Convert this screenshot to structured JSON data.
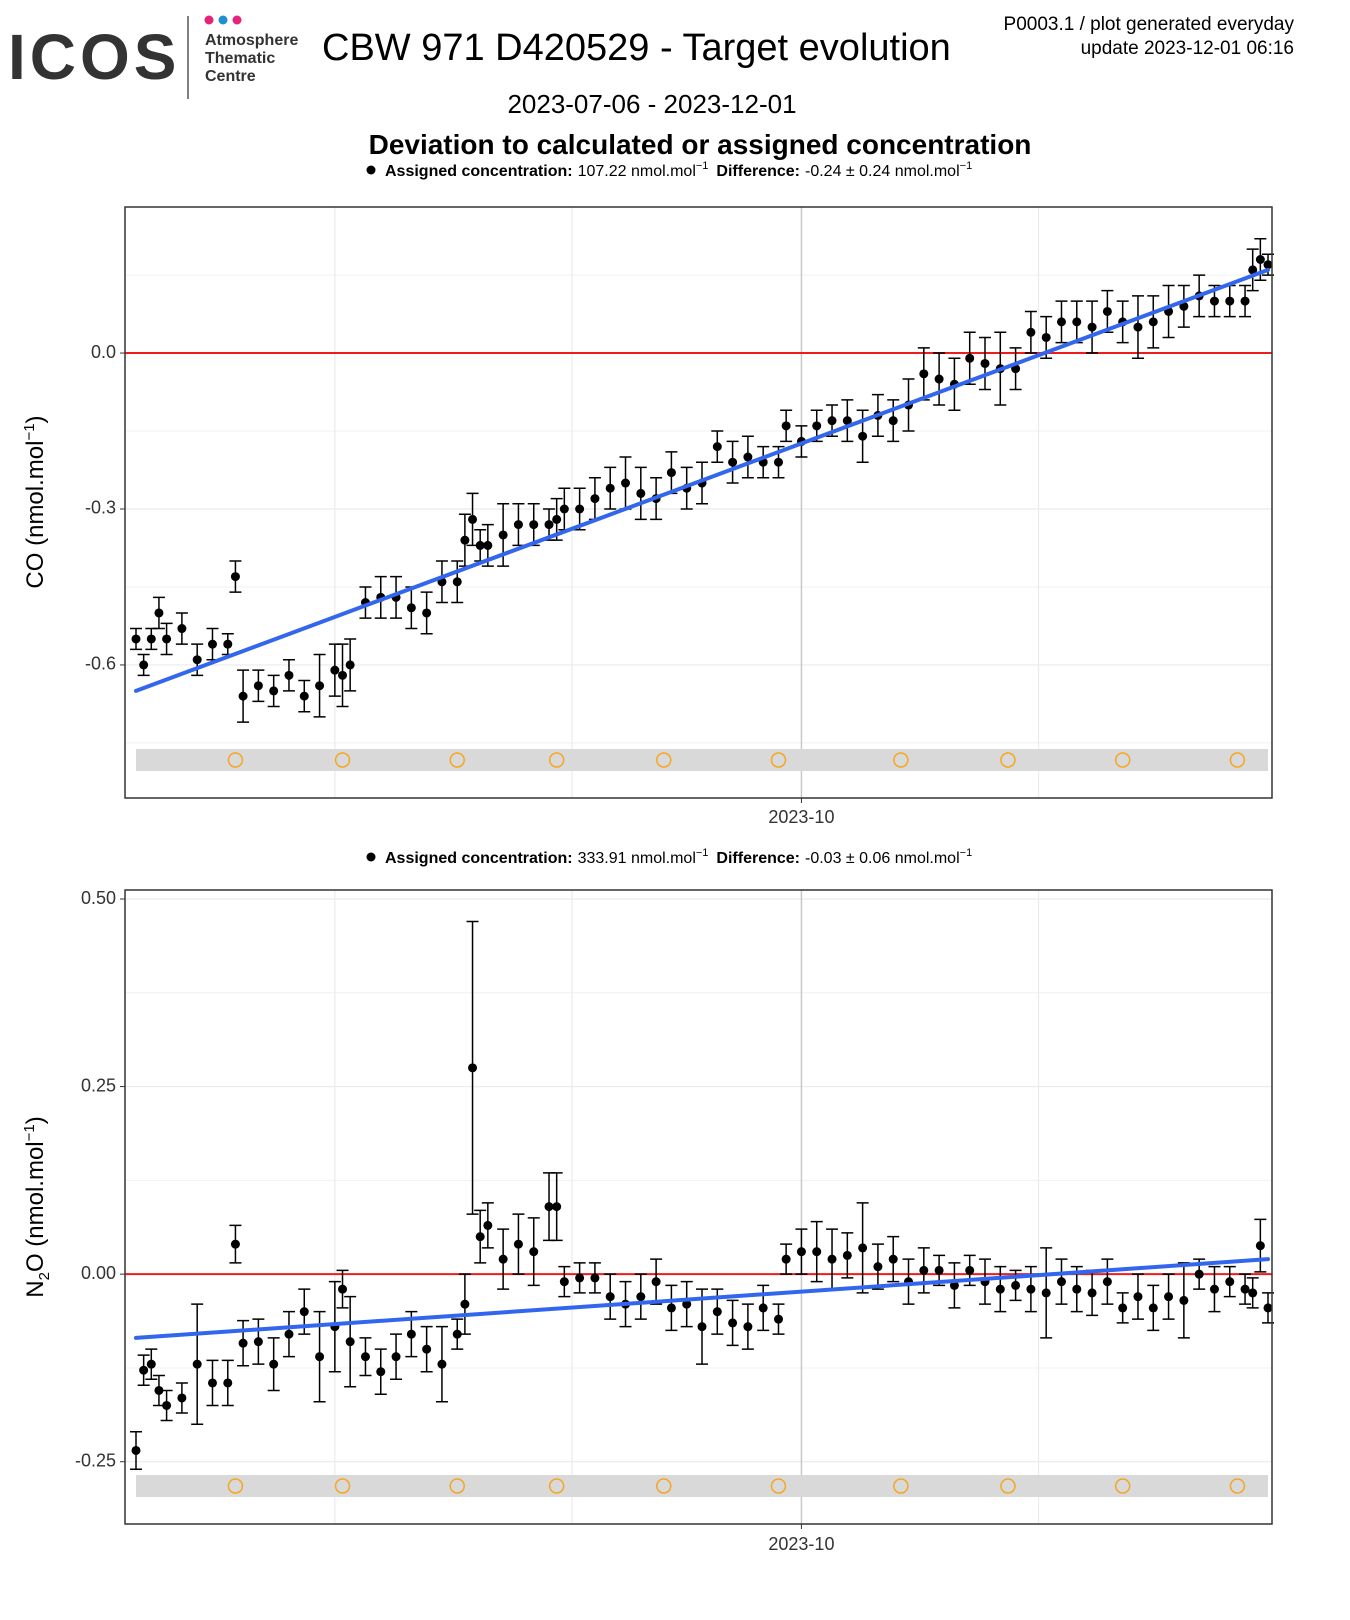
{
  "header": {
    "logo": "ICOS",
    "logo_lines": [
      "Atmosphere",
      "Thematic",
      "Centre"
    ],
    "title": "CBW 971 D420529 - Target evolution",
    "note": "P0003.1 / plot generated everyday",
    "update": "update  2023-12-01 06:16",
    "period": "2023-07-06 - 2023-12-01",
    "subtitle": "Deviation to calculated or assigned concentration"
  },
  "chart_data": [
    {
      "type": "scatter",
      "legend": {
        "assigned_label": "Assigned concentration:",
        "assigned": "107.22 nmol.mol",
        "assigned_exp": "−1",
        "difference_label": "Difference:",
        "difference": "-0.24 ± 0.24 nmol.mol",
        "difference_exp": "−1"
      },
      "ylabel": {
        "pre": "CO (nmol.mol",
        "sup": "−1",
        "post": ")"
      },
      "xlim": [
        "2023-07-06",
        "2023-12-01"
      ],
      "xticks": [
        {
          "value": "2023-10-01",
          "label": "2023-10"
        }
      ],
      "xgrid": [
        "2023-08-01",
        "2023-09-01",
        "2023-11-01"
      ],
      "ylim": [
        -0.856,
        0.281
      ],
      "yticks": [
        {
          "value": 0,
          "label": "0.0"
        },
        -0.3,
        -0.6
      ],
      "grid": true,
      "reference_line": {
        "value": 0,
        "color": "#ee1c1c"
      },
      "markers": {
        "color": "#f5a623",
        "x": [
          "2023-07-19",
          "2023-08-02",
          "2023-08-17",
          "2023-08-30",
          "2023-09-13",
          "2023-09-28",
          "2023-10-14",
          "2023-10-28",
          "2023-11-12",
          "2023-11-27"
        ]
      },
      "trend": {
        "color": "#3366ee",
        "x": [
          "2023-07-06",
          "2023-12-01"
        ],
        "values": [
          -0.65,
          0.16
        ]
      },
      "color": "#000000",
      "x": [
        "2023-07-06",
        "2023-07-07",
        "2023-07-08",
        "2023-07-09",
        "2023-07-10",
        "2023-07-12",
        "2023-07-14",
        "2023-07-16",
        "2023-07-18",
        "2023-07-19",
        "2023-07-20",
        "2023-07-22",
        "2023-07-24",
        "2023-07-26",
        "2023-07-28",
        "2023-07-30",
        "2023-08-01",
        "2023-08-02",
        "2023-08-03",
        "2023-08-05",
        "2023-08-07",
        "2023-08-09",
        "2023-08-11",
        "2023-08-13",
        "2023-08-15",
        "2023-08-17",
        "2023-08-18",
        "2023-08-19",
        "2023-08-20",
        "2023-08-21",
        "2023-08-23",
        "2023-08-25",
        "2023-08-27",
        "2023-08-29",
        "2023-08-30",
        "2023-08-31",
        "2023-09-02",
        "2023-09-04",
        "2023-09-06",
        "2023-09-08",
        "2023-09-10",
        "2023-09-12",
        "2023-09-14",
        "2023-09-16",
        "2023-09-18",
        "2023-09-20",
        "2023-09-22",
        "2023-09-24",
        "2023-09-26",
        "2023-09-28",
        "2023-09-29",
        "2023-10-01",
        "2023-10-03",
        "2023-10-05",
        "2023-10-07",
        "2023-10-09",
        "2023-10-11",
        "2023-10-13",
        "2023-10-15",
        "2023-10-17",
        "2023-10-19",
        "2023-10-21",
        "2023-10-23",
        "2023-10-25",
        "2023-10-27",
        "2023-10-29",
        "2023-10-31",
        "2023-11-02",
        "2023-11-04",
        "2023-11-06",
        "2023-11-08",
        "2023-11-10",
        "2023-11-12",
        "2023-11-14",
        "2023-11-16",
        "2023-11-18",
        "2023-11-20",
        "2023-11-22",
        "2023-11-24",
        "2023-11-26",
        "2023-11-28",
        "2023-11-29",
        "2023-11-30",
        "2023-12-01"
      ],
      "values": [
        -0.55,
        -0.6,
        -0.55,
        -0.5,
        -0.55,
        -0.53,
        -0.59,
        -0.56,
        -0.56,
        -0.43,
        -0.66,
        -0.64,
        -0.65,
        -0.62,
        -0.66,
        -0.64,
        -0.61,
        -0.62,
        -0.6,
        -0.48,
        -0.47,
        -0.47,
        -0.49,
        -0.5,
        -0.44,
        -0.44,
        -0.36,
        -0.32,
        -0.37,
        -0.37,
        -0.35,
        -0.33,
        -0.33,
        -0.33,
        -0.32,
        -0.3,
        -0.3,
        -0.28,
        -0.26,
        -0.25,
        -0.27,
        -0.28,
        -0.23,
        -0.26,
        -0.25,
        -0.18,
        -0.21,
        -0.2,
        -0.21,
        -0.21,
        -0.14,
        -0.17,
        -0.14,
        -0.13,
        -0.13,
        -0.16,
        -0.12,
        -0.13,
        -0.1,
        -0.04,
        -0.05,
        -0.06,
        -0.01,
        -0.02,
        -0.03,
        -0.03,
        0.04,
        0.03,
        0.06,
        0.06,
        0.05,
        0.08,
        0.06,
        0.05,
        0.06,
        0.08,
        0.09,
        0.11,
        0.1,
        0.1,
        0.1,
        0.16,
        0.18,
        0.17
      ],
      "errors": [
        0.02,
        0.02,
        0.02,
        0.03,
        0.03,
        0.03,
        0.03,
        0.03,
        0.02,
        0.03,
        0.05,
        0.03,
        0.03,
        0.03,
        0.03,
        0.06,
        0.05,
        0.06,
        0.05,
        0.03,
        0.04,
        0.04,
        0.04,
        0.04,
        0.04,
        0.04,
        0.05,
        0.05,
        0.03,
        0.04,
        0.06,
        0.04,
        0.04,
        0.03,
        0.04,
        0.04,
        0.04,
        0.04,
        0.04,
        0.05,
        0.05,
        0.04,
        0.04,
        0.04,
        0.04,
        0.03,
        0.04,
        0.04,
        0.03,
        0.03,
        0.03,
        0.03,
        0.03,
        0.03,
        0.04,
        0.05,
        0.04,
        0.04,
        0.05,
        0.05,
        0.05,
        0.05,
        0.05,
        0.05,
        0.07,
        0.04,
        0.04,
        0.04,
        0.04,
        0.04,
        0.05,
        0.04,
        0.04,
        0.06,
        0.05,
        0.05,
        0.04,
        0.04,
        0.03,
        0.03,
        0.03,
        0.04,
        0.04,
        0.02
      ]
    },
    {
      "type": "scatter",
      "legend": {
        "assigned_label": "Assigned concentration:",
        "assigned": "333.91 nmol.mol",
        "assigned_exp": "−1",
        "difference_label": "Difference:",
        "difference": "-0.03 ± 0.06 nmol.mol",
        "difference_exp": "−1"
      },
      "ylabel": {
        "pre": "N",
        "sub": "2",
        "mid": "O (nmol.mol",
        "sup": "−1",
        "post": ")"
      },
      "xlim": [
        "2023-07-06",
        "2023-12-01"
      ],
      "xticks": [
        {
          "value": "2023-10-01",
          "label": "2023-10"
        }
      ],
      "xgrid": [
        "2023-08-01",
        "2023-09-01",
        "2023-11-01"
      ],
      "ylim": [
        -0.333,
        0.512
      ],
      "yticks": [
        {
          "value": 0.5,
          "label": "0.50"
        },
        0.25,
        {
          "value": 0,
          "label": "0.00"
        },
        -0.25
      ],
      "grid": true,
      "reference_line": {
        "value": 0,
        "color": "#ee1c1c"
      },
      "markers": {
        "color": "#f5a623",
        "x": [
          "2023-07-19",
          "2023-08-02",
          "2023-08-17",
          "2023-08-30",
          "2023-09-13",
          "2023-09-28",
          "2023-10-14",
          "2023-10-28",
          "2023-11-12",
          "2023-11-27"
        ]
      },
      "trend": {
        "color": "#3366ee",
        "x": [
          "2023-07-06",
          "2023-12-01"
        ],
        "values": [
          -0.085,
          0.02
        ]
      },
      "color": "#000000",
      "x": [
        "2023-07-06",
        "2023-07-07",
        "2023-07-08",
        "2023-07-09",
        "2023-07-10",
        "2023-07-12",
        "2023-07-14",
        "2023-07-16",
        "2023-07-18",
        "2023-07-19",
        "2023-07-20",
        "2023-07-22",
        "2023-07-24",
        "2023-07-26",
        "2023-07-28",
        "2023-07-30",
        "2023-08-01",
        "2023-08-02",
        "2023-08-03",
        "2023-08-05",
        "2023-08-07",
        "2023-08-09",
        "2023-08-11",
        "2023-08-13",
        "2023-08-15",
        "2023-08-17",
        "2023-08-18",
        "2023-08-19",
        "2023-08-20",
        "2023-08-21",
        "2023-08-23",
        "2023-08-25",
        "2023-08-27",
        "2023-08-29",
        "2023-08-30",
        "2023-08-31",
        "2023-09-02",
        "2023-09-04",
        "2023-09-06",
        "2023-09-08",
        "2023-09-10",
        "2023-09-12",
        "2023-09-14",
        "2023-09-16",
        "2023-09-18",
        "2023-09-20",
        "2023-09-22",
        "2023-09-24",
        "2023-09-26",
        "2023-09-28",
        "2023-09-29",
        "2023-10-01",
        "2023-10-03",
        "2023-10-05",
        "2023-10-07",
        "2023-10-09",
        "2023-10-11",
        "2023-10-13",
        "2023-10-15",
        "2023-10-17",
        "2023-10-19",
        "2023-10-21",
        "2023-10-23",
        "2023-10-25",
        "2023-10-27",
        "2023-10-29",
        "2023-10-31",
        "2023-11-02",
        "2023-11-04",
        "2023-11-06",
        "2023-11-08",
        "2023-11-10",
        "2023-11-12",
        "2023-11-14",
        "2023-11-16",
        "2023-11-18",
        "2023-11-20",
        "2023-11-22",
        "2023-11-24",
        "2023-11-26",
        "2023-11-28",
        "2023-11-29",
        "2023-11-30",
        "2023-12-01"
      ],
      "values": [
        -0.235,
        -0.128,
        -0.12,
        -0.155,
        -0.175,
        -0.165,
        -0.12,
        -0.145,
        -0.145,
        0.04,
        -0.092,
        -0.09,
        -0.12,
        -0.08,
        -0.05,
        -0.11,
        -0.07,
        -0.02,
        -0.09,
        -0.11,
        -0.13,
        -0.11,
        -0.08,
        -0.1,
        -0.12,
        -0.08,
        -0.04,
        0.275,
        0.05,
        0.065,
        0.02,
        0.04,
        0.03,
        0.09,
        0.09,
        -0.01,
        -0.005,
        -0.005,
        -0.03,
        -0.04,
        -0.03,
        -0.01,
        -0.045,
        -0.04,
        -0.07,
        -0.05,
        -0.065,
        -0.07,
        -0.045,
        -0.06,
        0.02,
        0.03,
        0.03,
        0.02,
        0.025,
        0.035,
        0.01,
        0.02,
        -0.01,
        0.005,
        0.005,
        -0.015,
        0.005,
        -0.01,
        -0.02,
        -0.015,
        -0.02,
        -0.025,
        -0.01,
        -0.02,
        -0.025,
        -0.01,
        -0.045,
        -0.03,
        -0.045,
        -0.03,
        -0.035,
        0.0,
        -0.02,
        -0.01,
        -0.02,
        -0.025,
        0.038,
        -0.045
      ],
      "errors": [
        0.025,
        0.02,
        0.02,
        0.02,
        0.02,
        0.02,
        0.08,
        0.03,
        0.03,
        0.025,
        0.03,
        0.03,
        0.035,
        0.03,
        0.03,
        0.06,
        0.06,
        0.025,
        0.06,
        0.025,
        0.03,
        0.03,
        0.03,
        0.03,
        0.05,
        0.02,
        0.04,
        0.195,
        0.035,
        0.03,
        0.04,
        0.04,
        0.045,
        0.045,
        0.045,
        0.02,
        0.02,
        0.02,
        0.03,
        0.03,
        0.03,
        0.03,
        0.03,
        0.03,
        0.05,
        0.03,
        0.03,
        0.03,
        0.03,
        0.02,
        0.02,
        0.03,
        0.04,
        0.04,
        0.03,
        0.06,
        0.03,
        0.03,
        0.03,
        0.03,
        0.02,
        0.03,
        0.02,
        0.03,
        0.03,
        0.02,
        0.03,
        0.06,
        0.03,
        0.03,
        0.03,
        0.03,
        0.02,
        0.03,
        0.03,
        0.03,
        0.05,
        0.02,
        0.03,
        0.02,
        0.02,
        0.02,
        0.035,
        0.02
      ]
    }
  ]
}
